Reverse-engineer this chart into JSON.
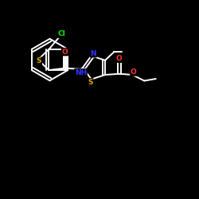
{
  "background_color": "#000000",
  "bond_color": "#ffffff",
  "atom_colors": {
    "Cl": "#00ee00",
    "O": "#ff3333",
    "N": "#3333ff",
    "S": "#ddaa00",
    "C": "#ffffff",
    "H": "#ffffff"
  },
  "lw": 1.4,
  "dbl_off": 0.07
}
